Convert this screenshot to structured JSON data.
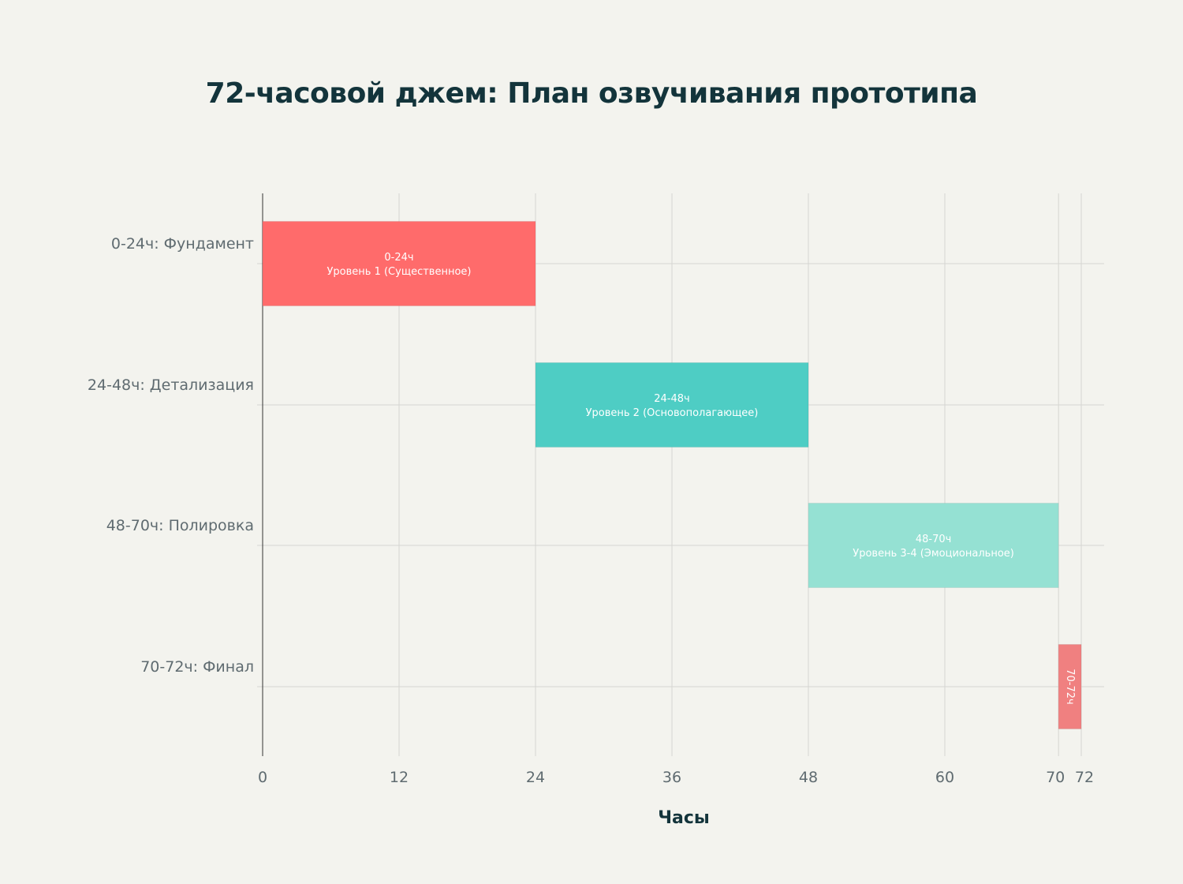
{
  "chart_data": {
    "type": "bar",
    "orientation": "horizontal",
    "title": "72-часовой джем: План озвучивания прототипа",
    "xlabel": "Часы",
    "ylabel": "",
    "xlim": [
      0,
      72
    ],
    "xticks": [
      0,
      12,
      24,
      36,
      48,
      60,
      70,
      72
    ],
    "grid": true,
    "categories": [
      "0-24ч: Фундамент",
      "24-48ч: Детализация",
      "48-70ч: Полировка",
      "70-72ч: Финал"
    ],
    "bars": [
      {
        "start": 0,
        "end": 24,
        "label_line1": "0-24ч",
        "label_line2": "Уровень 1 (Существенное)",
        "color": "#ff6b6b"
      },
      {
        "start": 24,
        "end": 48,
        "label_line1": "24-48ч",
        "label_line2": "Уровень 2 (Основополагающее)",
        "color": "#4ecdc4"
      },
      {
        "start": 48,
        "end": 70,
        "label_line1": "48-70ч",
        "label_line2": "Уровень 3-4 (Эмоциональное)",
        "color": "#95e1d3"
      },
      {
        "start": 70,
        "end": 72,
        "label_line1": "70-72ч",
        "label_line2": "",
        "color": "#f08080",
        "label_rotated": true
      }
    ]
  },
  "colors": {
    "background": "#f3f3ee",
    "title": "#13343b",
    "axis_text": "#5f6b70",
    "grid": "#d6d6d2"
  }
}
